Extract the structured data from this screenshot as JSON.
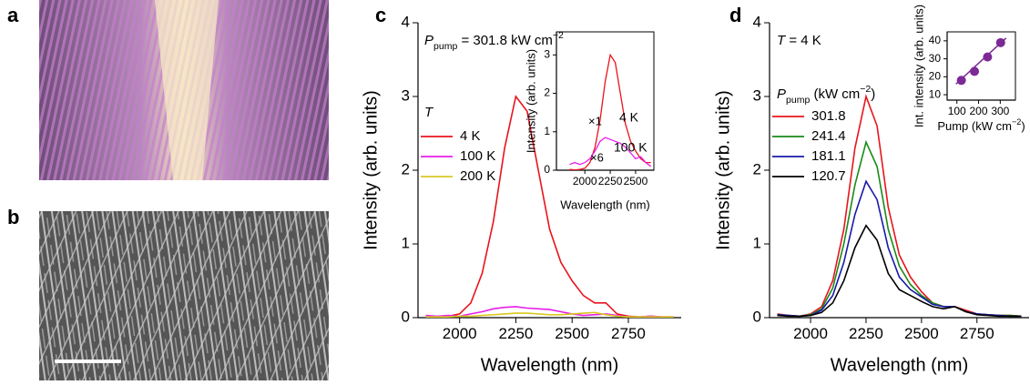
{
  "panel_labels": [
    "a",
    "b",
    "c",
    "d"
  ],
  "chart_data": [
    {
      "type": "line",
      "xlabel": "Wavelength (nm)",
      "ylabel": "Intensity (arb. units)",
      "annotation": [
        "P",
        "pump",
        " = 301.8 kW cm",
        "−2"
      ],
      "legend_title": "T",
      "xlim": [
        1815,
        2985
      ],
      "xticks": [
        2000,
        2250,
        2500,
        2750
      ],
      "ylim": [
        0,
        4
      ],
      "yticks": [
        0,
        1,
        2,
        3,
        4
      ],
      "x": [
        1850,
        1900,
        1950,
        2000,
        2050,
        2100,
        2150,
        2200,
        2250,
        2300,
        2350,
        2400,
        2450,
        2500,
        2550,
        2600,
        2650,
        2700,
        2750,
        2800,
        2850,
        2900,
        2950
      ],
      "series": [
        {
          "name": "4 K",
          "color": "#e8141c",
          "values": [
            0.02,
            0.01,
            0.02,
            0.05,
            0.2,
            0.6,
            1.3,
            2.3,
            3.0,
            2.8,
            2.0,
            1.2,
            0.75,
            0.5,
            0.3,
            0.2,
            0.2,
            0.05,
            0.02,
            0.01,
            0.02,
            0.01,
            0.01
          ]
        },
        {
          "name": "100 K",
          "color": "#e81ee8",
          "values": [
            0.03,
            0.02,
            0.03,
            0.02,
            0.05,
            0.08,
            0.12,
            0.14,
            0.15,
            0.13,
            0.12,
            0.11,
            0.08,
            0.05,
            0.03,
            0.04,
            0.05,
            0.03,
            0.01,
            0.01,
            0.02,
            0.01,
            0.01
          ]
        },
        {
          "name": "200 K",
          "color": "#d8c820",
          "values": [
            0.01,
            0.01,
            0.01,
            0.02,
            0.02,
            0.03,
            0.04,
            0.05,
            0.06,
            0.06,
            0.05,
            0.04,
            0.04,
            0.05,
            0.06,
            0.07,
            0.04,
            0.02,
            0.01,
            0.01,
            0.01,
            0.01,
            0.01
          ]
        }
      ]
    },
    {
      "type": "line",
      "xlabel": "Wavelength (nm)",
      "ylabel": "Intensity (arb. units)",
      "annotations": [
        "×1",
        "×6"
      ],
      "xlim": [
        1720,
        2680
      ],
      "xticks": [
        2000,
        2250,
        2500
      ],
      "ylim": [
        0,
        3.6
      ],
      "yticks": [
        0,
        1,
        2,
        3
      ],
      "x": [
        1850,
        1900,
        1950,
        2000,
        2050,
        2100,
        2150,
        2200,
        2250,
        2300,
        2350,
        2400,
        2450,
        2500,
        2550,
        2600,
        2650
      ],
      "series": [
        {
          "name": "4 K",
          "color": "#e8141c",
          "values": [
            0.02,
            0.01,
            0.02,
            0.05,
            0.2,
            0.6,
            1.3,
            2.3,
            3.0,
            2.8,
            2.0,
            1.2,
            0.75,
            0.5,
            0.3,
            0.2,
            0.2
          ]
        },
        {
          "name": "100 K",
          "color": "#e81ee8",
          "values": [
            0.15,
            0.2,
            0.15,
            0.2,
            0.3,
            0.5,
            0.75,
            0.85,
            0.8,
            0.75,
            0.7,
            0.6,
            0.45,
            0.3,
            0.35,
            0.2,
            0.1
          ]
        }
      ]
    },
    {
      "type": "line",
      "xlabel": "Wavelength (nm)",
      "ylabel": "Intensity (arb. units)",
      "annotation": [
        "T",
        " = 4 K"
      ],
      "legend_title": [
        "P",
        "pump",
        " (kW cm",
        "−2",
        ")"
      ],
      "xlim": [
        1815,
        2985
      ],
      "xticks": [
        2000,
        2250,
        2500,
        2750
      ],
      "ylim": [
        0,
        4
      ],
      "yticks": [
        0,
        1,
        2,
        3,
        4
      ],
      "x": [
        1850,
        1900,
        1950,
        2000,
        2050,
        2100,
        2150,
        2200,
        2250,
        2300,
        2350,
        2400,
        2450,
        2500,
        2550,
        2600,
        2650,
        2700,
        2750,
        2800,
        2850,
        2900,
        2950
      ],
      "series": [
        {
          "name": "301.8",
          "color": "#e8141c",
          "values": [
            0.05,
            0.03,
            0.02,
            0.05,
            0.15,
            0.5,
            1.2,
            2.3,
            3.0,
            2.6,
            1.5,
            0.85,
            0.55,
            0.35,
            0.2,
            0.15,
            0.15,
            0.1,
            0.05,
            0.04,
            0.03,
            0.03,
            0.02
          ]
        },
        {
          "name": "241.4",
          "color": "#1a8a1a",
          "values": [
            0.04,
            0.03,
            0.02,
            0.04,
            0.12,
            0.4,
            1.0,
            1.8,
            2.38,
            2.05,
            1.2,
            0.7,
            0.45,
            0.3,
            0.2,
            0.15,
            0.15,
            0.08,
            0.05,
            0.04,
            0.03,
            0.03,
            0.02
          ]
        },
        {
          "name": "181.1",
          "color": "#1a1aa8",
          "values": [
            0.04,
            0.03,
            0.02,
            0.03,
            0.1,
            0.3,
            0.75,
            1.4,
            1.85,
            1.6,
            0.95,
            0.55,
            0.38,
            0.28,
            0.18,
            0.15,
            0.15,
            0.08,
            0.05,
            0.04,
            0.03,
            0.02,
            0.02
          ]
        },
        {
          "name": "120.7",
          "color": "#000000",
          "values": [
            0.03,
            0.02,
            0.02,
            0.03,
            0.07,
            0.2,
            0.5,
            0.95,
            1.25,
            1.05,
            0.6,
            0.38,
            0.3,
            0.22,
            0.15,
            0.12,
            0.15,
            0.08,
            0.04,
            0.03,
            0.02,
            0.02,
            0.02
          ]
        }
      ]
    },
    {
      "type": "scatter",
      "xlabel": [
        "Pump (kW cm",
        "−2",
        ")"
      ],
      "ylabel": "Int. intensity (arb. units)",
      "xlim": [
        55,
        370
      ],
      "xticks": [
        100,
        200,
        300
      ],
      "ylim": [
        7,
        45
      ],
      "yticks": [
        10,
        20,
        30,
        40
      ],
      "x": [
        120.7,
        181.1,
        241.4,
        301.8
      ],
      "values": [
        18,
        23,
        31,
        39
      ],
      "color": "#7b2a96"
    }
  ]
}
